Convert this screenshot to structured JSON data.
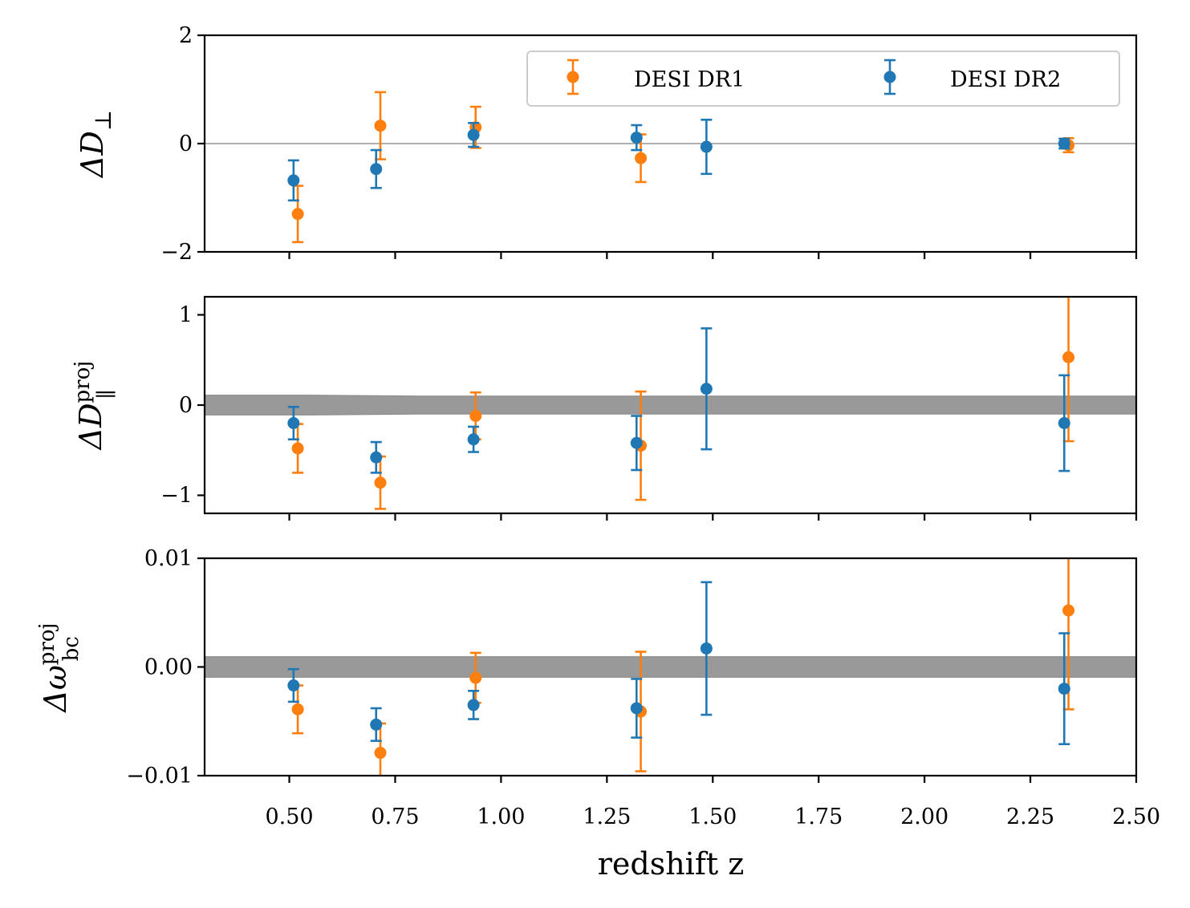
{
  "chart_data": {
    "type": "scatter",
    "xlabel": "redshift z",
    "xlim": [
      0.3,
      2.5
    ],
    "xticks": [
      "0.50",
      "0.75",
      "1.00",
      "1.25",
      "1.50",
      "1.75",
      "2.00",
      "2.25",
      "2.50"
    ],
    "colors": {
      "dr1": "#ff7f0e",
      "dr2": "#1f77b4",
      "band": "#999999",
      "zero": "#808080"
    },
    "legend": {
      "placement": "top-right",
      "entries": [
        "DESI DR1",
        "DESI DR2"
      ]
    },
    "panels": [
      {
        "ylabel_base": "ΔD",
        "ylabel_sub": "⊥",
        "ylabel_sup": "",
        "ylim": [
          -2,
          2
        ],
        "yticks": [
          {
            "v": -2,
            "label": "−2"
          },
          {
            "v": 0,
            "label": "0"
          },
          {
            "v": 2,
            "label": "2"
          }
        ],
        "zero_line": true,
        "band": null,
        "series": [
          {
            "name": "DESI DR1",
            "x": [
              0.52,
              0.715,
              0.94,
              1.33,
              2.34
            ],
            "y": [
              -1.3,
              0.33,
              0.3,
              -0.27,
              -0.03
            ],
            "err": [
              0.52,
              0.62,
              0.38,
              0.44,
              0.13
            ]
          },
          {
            "name": "DESI DR2",
            "x": [
              0.51,
              0.705,
              0.935,
              1.32,
              1.485,
              2.33
            ],
            "y": [
              -0.68,
              -0.47,
              0.16,
              0.11,
              -0.06,
              0.0
            ],
            "err": [
              0.37,
              0.35,
              0.22,
              0.23,
              0.5,
              0.09
            ]
          }
        ]
      },
      {
        "ylabel_base": "ΔD",
        "ylabel_sub": "∥",
        "ylabel_sup": "proj",
        "ylim": [
          -1.2,
          1.2
        ],
        "yticks": [
          {
            "v": -1,
            "label": "−1"
          },
          {
            "v": 0,
            "label": "0"
          },
          {
            "v": 1,
            "label": "1"
          }
        ],
        "zero_line": false,
        "band": {
          "x": [
            0.3,
            0.55,
            0.8,
            2.5
          ],
          "half_width": [
            0.11,
            0.11,
            0.1,
            0.1
          ]
        },
        "series": [
          {
            "name": "DESI DR1",
            "x": [
              0.52,
              0.715,
              0.94,
              1.33,
              2.34
            ],
            "y": [
              -0.48,
              -0.86,
              -0.12,
              -0.45,
              0.53
            ],
            "err": [
              0.27,
              0.29,
              0.26,
              0.6,
              0.93
            ]
          },
          {
            "name": "DESI DR2",
            "x": [
              0.51,
              0.705,
              0.935,
              1.32,
              1.485,
              2.33
            ],
            "y": [
              -0.2,
              -0.58,
              -0.38,
              -0.42,
              0.18,
              -0.2
            ],
            "err": [
              0.18,
              0.17,
              0.14,
              0.3,
              0.67,
              0.53
            ]
          }
        ]
      },
      {
        "ylabel_base": "Δω",
        "ylabel_sub": "bc",
        "ylabel_sup": "proj",
        "ylim": [
          -0.01,
          0.01
        ],
        "yticks": [
          {
            "v": -0.01,
            "label": "−0.01"
          },
          {
            "v": 0,
            "label": "0.00"
          },
          {
            "v": 0.01,
            "label": "0.01"
          }
        ],
        "zero_line": false,
        "band": {
          "x": [
            0.3,
            2.5
          ],
          "half_width": [
            0.00095,
            0.00095
          ]
        },
        "series": [
          {
            "name": "DESI DR1",
            "x": [
              0.52,
              0.715,
              0.94,
              1.33,
              2.34
            ],
            "y": [
              -0.0039,
              -0.0079,
              -0.001,
              -0.0041,
              0.0052
            ],
            "err": [
              0.0022,
              0.0027,
              0.0023,
              0.0055,
              0.0091
            ]
          },
          {
            "name": "DESI DR2",
            "x": [
              0.51,
              0.705,
              0.935,
              1.32,
              1.485,
              2.33
            ],
            "y": [
              -0.0017,
              -0.0053,
              -0.0035,
              -0.0038,
              0.0017,
              -0.002
            ],
            "err": [
              0.0015,
              0.0015,
              0.0013,
              0.0027,
              0.0061,
              0.0051
            ]
          }
        ]
      }
    ]
  }
}
